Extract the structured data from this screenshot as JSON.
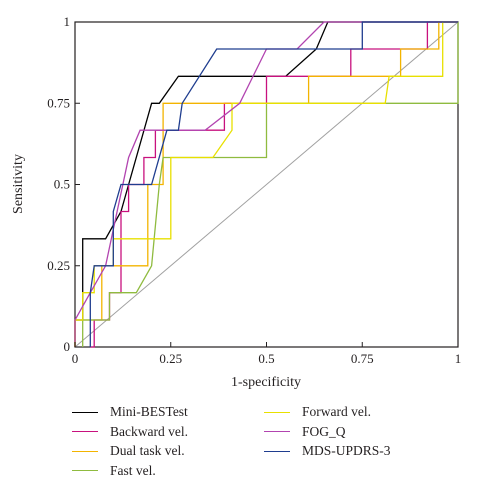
{
  "chart_data": {
    "type": "line",
    "xlabel": "1-specificity",
    "ylabel": "Sensitivity",
    "xlim": [
      0,
      1
    ],
    "ylim": [
      0,
      1
    ],
    "x_ticks": [
      "0",
      "0.25",
      "0.5",
      "0.75",
      "1"
    ],
    "y_ticks": [
      "0",
      "0.25",
      "0.5",
      "0.75",
      "1"
    ],
    "grid": false,
    "legend_position": "bottom",
    "reference_line": {
      "x": [
        0,
        1
      ],
      "y": [
        0,
        1
      ],
      "color": "#a0a0a0"
    },
    "series": [
      {
        "name": "Mini-BESTest",
        "color": "#000000",
        "points": [
          [
            0,
            0
          ],
          [
            0,
            0.083
          ],
          [
            0.02,
            0.083
          ],
          [
            0.02,
            0.333
          ],
          [
            0.08,
            0.333
          ],
          [
            0.12,
            0.417
          ],
          [
            0.2,
            0.75
          ],
          [
            0.22,
            0.75
          ],
          [
            0.27,
            0.833
          ],
          [
            0.52,
            0.833
          ],
          [
            0.55,
            0.833
          ],
          [
            0.63,
            0.917
          ],
          [
            0.66,
            1
          ],
          [
            1,
            1
          ]
        ]
      },
      {
        "name": "Backward vel.",
        "color": "#c8117e",
        "points": [
          [
            0.04,
            0
          ],
          [
            0.05,
            0
          ],
          [
            0.05,
            0.083
          ],
          [
            0.09,
            0.083
          ],
          [
            0.09,
            0.167
          ],
          [
            0.12,
            0.167
          ],
          [
            0.12,
            0.417
          ],
          [
            0.14,
            0.417
          ],
          [
            0.14,
            0.5
          ],
          [
            0.18,
            0.5
          ],
          [
            0.18,
            0.583
          ],
          [
            0.21,
            0.583
          ],
          [
            0.21,
            0.667
          ],
          [
            0.39,
            0.667
          ],
          [
            0.39,
            0.75
          ],
          [
            0.5,
            0.75
          ],
          [
            0.5,
            0.833
          ],
          [
            0.72,
            0.833
          ],
          [
            0.72,
            0.917
          ],
          [
            0.92,
            0.917
          ],
          [
            0.92,
            1
          ],
          [
            1,
            1
          ]
        ]
      },
      {
        "name": "Dual task vel.",
        "color": "#f3b400",
        "points": [
          [
            0,
            0
          ],
          [
            0,
            0.083
          ],
          [
            0.07,
            0.083
          ],
          [
            0.07,
            0.25
          ],
          [
            0.19,
            0.25
          ],
          [
            0.19,
            0.5
          ],
          [
            0.23,
            0.5
          ],
          [
            0.23,
            0.75
          ],
          [
            0.61,
            0.75
          ],
          [
            0.61,
            0.833
          ],
          [
            0.85,
            0.833
          ],
          [
            0.85,
            0.917
          ],
          [
            0.95,
            0.917
          ],
          [
            0.95,
            1
          ],
          [
            1,
            1
          ]
        ]
      },
      {
        "name": "Fast vel.",
        "color": "#8fbb3f",
        "points": [
          [
            0.02,
            0
          ],
          [
            0.02,
            0.083
          ],
          [
            0.09,
            0.083
          ],
          [
            0.09,
            0.167
          ],
          [
            0.16,
            0.167
          ],
          [
            0.2,
            0.25
          ],
          [
            0.22,
            0.5
          ],
          [
            0.23,
            0.583
          ],
          [
            0.5,
            0.583
          ],
          [
            0.5,
            0.75
          ],
          [
            0.86,
            0.75
          ],
          [
            1,
            0.75
          ],
          [
            1,
            1
          ]
        ]
      },
      {
        "name": "Forward vel.",
        "color": "#e8e000",
        "points": [
          [
            0,
            0
          ],
          [
            0,
            0.083
          ],
          [
            0.02,
            0.083
          ],
          [
            0.02,
            0.167
          ],
          [
            0.05,
            0.167
          ],
          [
            0.05,
            0.25
          ],
          [
            0.1,
            0.25
          ],
          [
            0.1,
            0.333
          ],
          [
            0.25,
            0.333
          ],
          [
            0.25,
            0.583
          ],
          [
            0.36,
            0.583
          ],
          [
            0.41,
            0.667
          ],
          [
            0.41,
            0.75
          ],
          [
            0.81,
            0.75
          ],
          [
            0.82,
            0.833
          ],
          [
            0.96,
            0.833
          ],
          [
            0.96,
            1
          ],
          [
            1,
            1
          ]
        ]
      },
      {
        "name": "FOG_Q",
        "color": "#b244b0",
        "points": [
          [
            0,
            0
          ],
          [
            0,
            0.083
          ],
          [
            0.04,
            0.167
          ],
          [
            0.08,
            0.25
          ],
          [
            0.11,
            0.417
          ],
          [
            0.14,
            0.583
          ],
          [
            0.17,
            0.667
          ],
          [
            0.34,
            0.667
          ],
          [
            0.43,
            0.75
          ],
          [
            0.5,
            0.917
          ],
          [
            0.58,
            0.917
          ],
          [
            0.65,
            1
          ],
          [
            1,
            1
          ]
        ]
      },
      {
        "name": "MDS-UPDRS-3",
        "color": "#1f3d8f",
        "points": [
          [
            0.04,
            0
          ],
          [
            0.04,
            0.167
          ],
          [
            0.05,
            0.25
          ],
          [
            0.1,
            0.25
          ],
          [
            0.1,
            0.417
          ],
          [
            0.12,
            0.5
          ],
          [
            0.2,
            0.5
          ],
          [
            0.24,
            0.667
          ],
          [
            0.27,
            0.667
          ],
          [
            0.28,
            0.75
          ],
          [
            0.37,
            0.917
          ],
          [
            0.75,
            0.917
          ],
          [
            0.75,
            1
          ],
          [
            1,
            1
          ]
        ]
      }
    ]
  }
}
